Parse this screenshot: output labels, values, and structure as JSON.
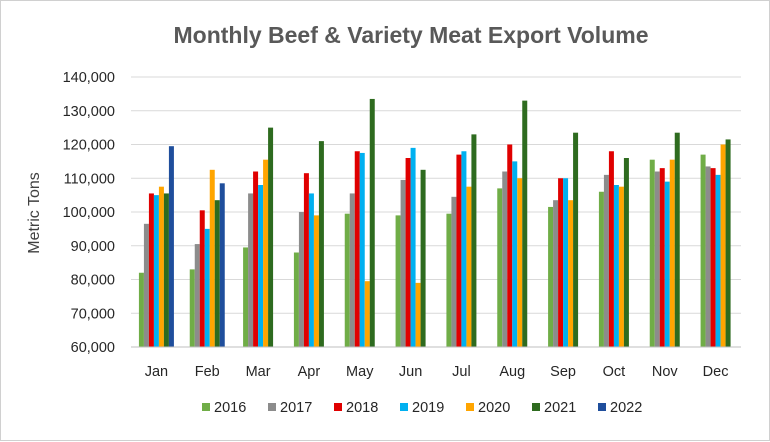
{
  "chart_data": {
    "type": "bar",
    "title": "Monthly Beef & Variety Meat Export Volume",
    "xlabel": "",
    "ylabel": "Metric Tons",
    "ylim": [
      60000,
      140000
    ],
    "yticks": [
      60000,
      70000,
      80000,
      90000,
      100000,
      110000,
      120000,
      130000,
      140000
    ],
    "ytick_labels": [
      "60,000",
      "70,000",
      "80,000",
      "90,000",
      "100,000",
      "110,000",
      "120,000",
      "130,000",
      "140,000"
    ],
    "grid": true,
    "legend_position": "bottom",
    "categories": [
      "Jan",
      "Feb",
      "Mar",
      "Apr",
      "May",
      "Jun",
      "Jul",
      "Aug",
      "Sep",
      "Oct",
      "Nov",
      "Dec"
    ],
    "series": [
      {
        "name": "2016",
        "color": "#70ad47",
        "values": [
          82000,
          83000,
          89500,
          88000,
          99500,
          99000,
          99500,
          107000,
          101500,
          106000,
          115500,
          117000
        ]
      },
      {
        "name": "2017",
        "color": "#8c8c8c",
        "values": [
          96500,
          90500,
          105500,
          100000,
          105500,
          109500,
          104500,
          112000,
          103500,
          111000,
          112000,
          113500
        ]
      },
      {
        "name": "2018",
        "color": "#e00000",
        "values": [
          105500,
          100500,
          112000,
          111500,
          118000,
          116000,
          117000,
          120000,
          110000,
          118000,
          113000,
          113000
        ]
      },
      {
        "name": "2019",
        "color": "#00b0f0",
        "values": [
          105000,
          95000,
          108000,
          105500,
          117500,
          119000,
          118000,
          115000,
          110000,
          108000,
          109000,
          111000
        ]
      },
      {
        "name": "2020",
        "color": "#ffa500",
        "values": [
          107500,
          112500,
          115500,
          99000,
          79500,
          79000,
          107500,
          110000,
          103500,
          107500,
          115500,
          120000
        ]
      },
      {
        "name": "2021",
        "color": "#2e6b1f",
        "values": [
          105500,
          103500,
          125000,
          121000,
          133500,
          112500,
          123000,
          133000,
          123500,
          116000,
          123500,
          121500
        ]
      },
      {
        "name": "2022",
        "color": "#1f4e9c",
        "values": [
          119500,
          108500,
          null,
          null,
          null,
          null,
          null,
          null,
          null,
          null,
          null,
          null
        ]
      }
    ]
  }
}
